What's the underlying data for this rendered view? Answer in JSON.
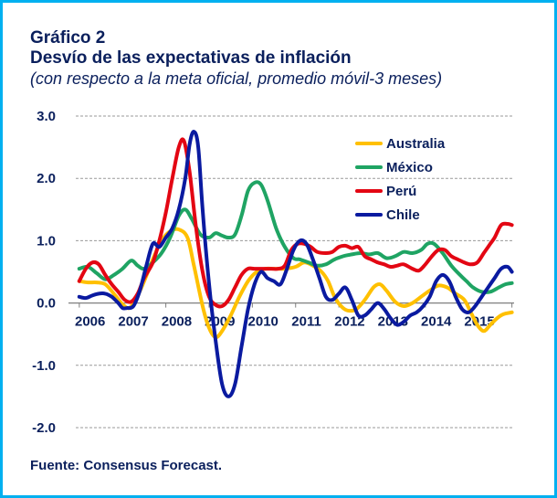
{
  "header": {
    "title_line1": "Gráfico 2",
    "title_line2": "Desvío de las expectativas de inflación",
    "subtitle": "(con respecto a la meta oficial, promedio móvil-3 meses)"
  },
  "footer": {
    "source": "Fuente: Consensus Forecast."
  },
  "chart_data": {
    "type": "line",
    "ylim": [
      -2.0,
      3.0
    ],
    "xlim": [
      2005.75,
      2016.05
    ],
    "y_ticks": [
      3.0,
      2.0,
      1.0,
      0.0,
      -1.0,
      -2.0
    ],
    "y_tick_labels": [
      "3.0",
      "2.0",
      "1.0",
      "0.0",
      "-1.0",
      "-2.0"
    ],
    "x_ticks": [
      2006.25,
      2007.25,
      2008.25,
      2009.25,
      2010.25,
      2011.25,
      2012.25,
      2013.25,
      2014.25,
      2015.25
    ],
    "x_tick_labels": [
      "2006",
      "2007",
      "2008",
      "2009",
      "2010",
      "2011",
      "2012",
      "2013",
      "2014",
      "2015"
    ],
    "grid": "horizontal-dashed",
    "legend_position": "top-right",
    "series": [
      {
        "name": "Australia",
        "color": "#ffc000",
        "points": [
          [
            2006.0,
            0.35
          ],
          [
            2006.2,
            0.33
          ],
          [
            2006.4,
            0.33
          ],
          [
            2006.6,
            0.3
          ],
          [
            2006.8,
            0.15
          ],
          [
            2007.0,
            -0.02
          ],
          [
            2007.15,
            -0.08
          ],
          [
            2007.3,
            0.05
          ],
          [
            2007.5,
            0.35
          ],
          [
            2007.7,
            0.7
          ],
          [
            2007.9,
            1.0
          ],
          [
            2008.1,
            1.15
          ],
          [
            2008.3,
            1.18
          ],
          [
            2008.5,
            1.05
          ],
          [
            2008.65,
            0.6
          ],
          [
            2008.85,
            -0.05
          ],
          [
            2009.0,
            -0.4
          ],
          [
            2009.15,
            -0.55
          ],
          [
            2009.3,
            -0.45
          ],
          [
            2009.5,
            -0.2
          ],
          [
            2009.7,
            0.1
          ],
          [
            2009.9,
            0.35
          ],
          [
            2010.1,
            0.5
          ],
          [
            2010.3,
            0.55
          ],
          [
            2010.5,
            0.55
          ],
          [
            2010.75,
            0.55
          ],
          [
            2011.0,
            0.58
          ],
          [
            2011.2,
            0.65
          ],
          [
            2011.4,
            0.6
          ],
          [
            2011.6,
            0.5
          ],
          [
            2011.75,
            0.35
          ],
          [
            2011.9,
            0.1
          ],
          [
            2012.05,
            -0.05
          ],
          [
            2012.2,
            -0.12
          ],
          [
            2012.4,
            -0.1
          ],
          [
            2012.6,
            0.05
          ],
          [
            2012.8,
            0.25
          ],
          [
            2012.95,
            0.3
          ],
          [
            2013.1,
            0.2
          ],
          [
            2013.3,
            0.02
          ],
          [
            2013.5,
            -0.05
          ],
          [
            2013.7,
            0.0
          ],
          [
            2013.9,
            0.1
          ],
          [
            2014.1,
            0.2
          ],
          [
            2014.3,
            0.28
          ],
          [
            2014.5,
            0.25
          ],
          [
            2014.7,
            0.15
          ],
          [
            2014.9,
            0.05
          ],
          [
            2015.05,
            -0.15
          ],
          [
            2015.2,
            -0.35
          ],
          [
            2015.35,
            -0.45
          ],
          [
            2015.5,
            -0.35
          ],
          [
            2015.65,
            -0.25
          ],
          [
            2015.8,
            -0.18
          ],
          [
            2016.0,
            -0.15
          ]
        ]
      },
      {
        "name": "México",
        "color": "#1fa463",
        "points": [
          [
            2006.0,
            0.55
          ],
          [
            2006.2,
            0.58
          ],
          [
            2006.4,
            0.48
          ],
          [
            2006.6,
            0.38
          ],
          [
            2006.8,
            0.45
          ],
          [
            2007.0,
            0.55
          ],
          [
            2007.2,
            0.68
          ],
          [
            2007.35,
            0.6
          ],
          [
            2007.5,
            0.55
          ],
          [
            2007.7,
            0.65
          ],
          [
            2007.9,
            0.8
          ],
          [
            2008.1,
            1.05
          ],
          [
            2008.3,
            1.4
          ],
          [
            2008.45,
            1.5
          ],
          [
            2008.6,
            1.35
          ],
          [
            2008.8,
            1.1
          ],
          [
            2009.0,
            1.05
          ],
          [
            2009.15,
            1.12
          ],
          [
            2009.3,
            1.08
          ],
          [
            2009.45,
            1.05
          ],
          [
            2009.6,
            1.1
          ],
          [
            2009.75,
            1.4
          ],
          [
            2009.9,
            1.8
          ],
          [
            2010.05,
            1.93
          ],
          [
            2010.2,
            1.9
          ],
          [
            2010.35,
            1.65
          ],
          [
            2010.55,
            1.2
          ],
          [
            2010.75,
            0.9
          ],
          [
            2010.95,
            0.72
          ],
          [
            2011.1,
            0.7
          ],
          [
            2011.3,
            0.65
          ],
          [
            2011.5,
            0.6
          ],
          [
            2011.7,
            0.62
          ],
          [
            2011.9,
            0.7
          ],
          [
            2012.1,
            0.75
          ],
          [
            2012.3,
            0.78
          ],
          [
            2012.5,
            0.8
          ],
          [
            2012.7,
            0.78
          ],
          [
            2012.9,
            0.8
          ],
          [
            2013.1,
            0.72
          ],
          [
            2013.3,
            0.75
          ],
          [
            2013.5,
            0.82
          ],
          [
            2013.7,
            0.8
          ],
          [
            2013.9,
            0.85
          ],
          [
            2014.05,
            0.95
          ],
          [
            2014.2,
            0.95
          ],
          [
            2014.4,
            0.8
          ],
          [
            2014.6,
            0.6
          ],
          [
            2014.8,
            0.45
          ],
          [
            2014.95,
            0.35
          ],
          [
            2015.1,
            0.25
          ],
          [
            2015.3,
            0.18
          ],
          [
            2015.5,
            0.18
          ],
          [
            2015.7,
            0.25
          ],
          [
            2015.85,
            0.3
          ],
          [
            2016.0,
            0.32
          ]
        ]
      },
      {
        "name": "Perú",
        "color": "#e30613",
        "points": [
          [
            2006.0,
            0.35
          ],
          [
            2006.15,
            0.55
          ],
          [
            2006.3,
            0.65
          ],
          [
            2006.45,
            0.62
          ],
          [
            2006.6,
            0.45
          ],
          [
            2006.75,
            0.3
          ],
          [
            2006.9,
            0.18
          ],
          [
            2007.05,
            0.05
          ],
          [
            2007.2,
            0.02
          ],
          [
            2007.35,
            0.15
          ],
          [
            2007.5,
            0.4
          ],
          [
            2007.7,
            0.65
          ],
          [
            2007.85,
            1.0
          ],
          [
            2008.0,
            1.45
          ],
          [
            2008.15,
            2.0
          ],
          [
            2008.3,
            2.5
          ],
          [
            2008.42,
            2.6
          ],
          [
            2008.55,
            2.1
          ],
          [
            2008.7,
            1.2
          ],
          [
            2008.85,
            0.5
          ],
          [
            2009.0,
            0.1
          ],
          [
            2009.15,
            -0.03
          ],
          [
            2009.3,
            -0.05
          ],
          [
            2009.45,
            0.05
          ],
          [
            2009.6,
            0.25
          ],
          [
            2009.75,
            0.45
          ],
          [
            2009.9,
            0.55
          ],
          [
            2010.05,
            0.55
          ],
          [
            2010.25,
            0.55
          ],
          [
            2010.45,
            0.55
          ],
          [
            2010.6,
            0.55
          ],
          [
            2010.75,
            0.6
          ],
          [
            2010.9,
            0.85
          ],
          [
            2011.05,
            0.95
          ],
          [
            2011.2,
            0.95
          ],
          [
            2011.35,
            0.9
          ],
          [
            2011.5,
            0.82
          ],
          [
            2011.7,
            0.8
          ],
          [
            2011.85,
            0.82
          ],
          [
            2012.0,
            0.9
          ],
          [
            2012.15,
            0.92
          ],
          [
            2012.3,
            0.88
          ],
          [
            2012.45,
            0.9
          ],
          [
            2012.6,
            0.75
          ],
          [
            2012.75,
            0.7
          ],
          [
            2012.9,
            0.65
          ],
          [
            2013.05,
            0.62
          ],
          [
            2013.2,
            0.58
          ],
          [
            2013.35,
            0.6
          ],
          [
            2013.5,
            0.62
          ],
          [
            2013.7,
            0.55
          ],
          [
            2013.85,
            0.52
          ],
          [
            2014.0,
            0.62
          ],
          [
            2014.15,
            0.75
          ],
          [
            2014.3,
            0.85
          ],
          [
            2014.45,
            0.85
          ],
          [
            2014.6,
            0.75
          ],
          [
            2014.75,
            0.7
          ],
          [
            2014.9,
            0.65
          ],
          [
            2015.05,
            0.62
          ],
          [
            2015.2,
            0.65
          ],
          [
            2015.35,
            0.8
          ],
          [
            2015.5,
            0.95
          ],
          [
            2015.6,
            1.05
          ],
          [
            2015.75,
            1.25
          ],
          [
            2015.9,
            1.27
          ],
          [
            2016.0,
            1.25
          ]
        ]
      },
      {
        "name": "Chile",
        "color": "#0a1aa0",
        "points": [
          [
            2006.0,
            0.1
          ],
          [
            2006.15,
            0.08
          ],
          [
            2006.3,
            0.12
          ],
          [
            2006.45,
            0.15
          ],
          [
            2006.6,
            0.15
          ],
          [
            2006.75,
            0.1
          ],
          [
            2006.9,
            0.0
          ],
          [
            2007.0,
            -0.08
          ],
          [
            2007.1,
            -0.08
          ],
          [
            2007.25,
            -0.05
          ],
          [
            2007.4,
            0.2
          ],
          [
            2007.55,
            0.6
          ],
          [
            2007.7,
            0.95
          ],
          [
            2007.85,
            0.9
          ],
          [
            2008.0,
            1.05
          ],
          [
            2008.15,
            1.2
          ],
          [
            2008.3,
            1.5
          ],
          [
            2008.45,
            2.0
          ],
          [
            2008.55,
            2.55
          ],
          [
            2008.65,
            2.75
          ],
          [
            2008.75,
            2.5
          ],
          [
            2008.85,
            1.5
          ],
          [
            2009.0,
            0.3
          ],
          [
            2009.15,
            -0.6
          ],
          [
            2009.3,
            -1.3
          ],
          [
            2009.45,
            -1.5
          ],
          [
            2009.6,
            -1.3
          ],
          [
            2009.75,
            -0.7
          ],
          [
            2009.9,
            -0.1
          ],
          [
            2010.05,
            0.3
          ],
          [
            2010.2,
            0.5
          ],
          [
            2010.35,
            0.4
          ],
          [
            2010.5,
            0.35
          ],
          [
            2010.65,
            0.3
          ],
          [
            2010.8,
            0.55
          ],
          [
            2010.95,
            0.85
          ],
          [
            2011.1,
            1.0
          ],
          [
            2011.25,
            0.95
          ],
          [
            2011.4,
            0.7
          ],
          [
            2011.55,
            0.4
          ],
          [
            2011.7,
            0.1
          ],
          [
            2011.85,
            0.05
          ],
          [
            2012.0,
            0.15
          ],
          [
            2012.15,
            0.25
          ],
          [
            2012.3,
            0.05
          ],
          [
            2012.45,
            -0.2
          ],
          [
            2012.6,
            -0.2
          ],
          [
            2012.75,
            -0.1
          ],
          [
            2012.9,
            0.0
          ],
          [
            2013.05,
            -0.1
          ],
          [
            2013.2,
            -0.25
          ],
          [
            2013.35,
            -0.35
          ],
          [
            2013.5,
            -0.3
          ],
          [
            2013.65,
            -0.2
          ],
          [
            2013.8,
            -0.15
          ],
          [
            2013.95,
            -0.05
          ],
          [
            2014.1,
            0.1
          ],
          [
            2014.25,
            0.35
          ],
          [
            2014.4,
            0.45
          ],
          [
            2014.55,
            0.35
          ],
          [
            2014.7,
            0.1
          ],
          [
            2014.85,
            -0.1
          ],
          [
            2015.0,
            -0.15
          ],
          [
            2015.15,
            -0.05
          ],
          [
            2015.3,
            0.1
          ],
          [
            2015.45,
            0.25
          ],
          [
            2015.6,
            0.4
          ],
          [
            2015.75,
            0.55
          ],
          [
            2015.9,
            0.58
          ],
          [
            2016.0,
            0.5
          ]
        ]
      }
    ]
  }
}
